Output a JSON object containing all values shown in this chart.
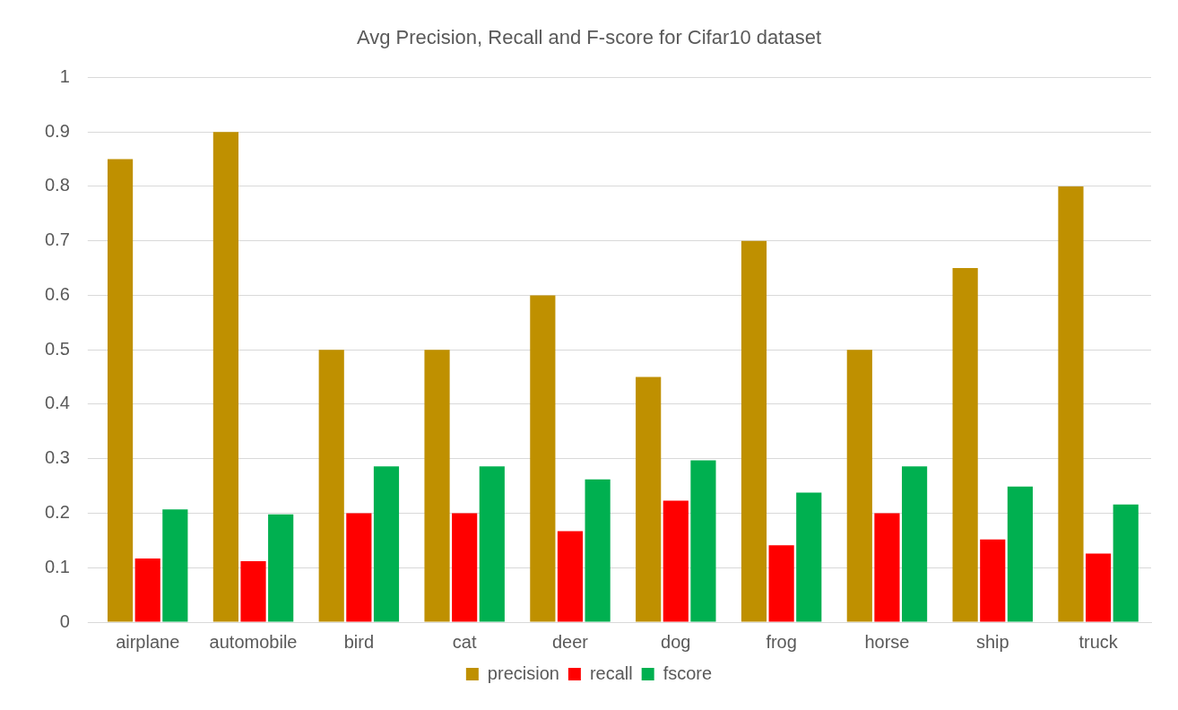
{
  "chart_data": {
    "type": "bar",
    "title": "Avg Precision, Recall and F-score for Cifar10 dataset",
    "categories": [
      "airplane",
      "automobile",
      "bird",
      "cat",
      "deer",
      "dog",
      "frog",
      "horse",
      "ship",
      "truck"
    ],
    "series": [
      {
        "name": "precision",
        "color": "#bf9000",
        "values": [
          0.85,
          0.9,
          0.5,
          0.5,
          0.6,
          0.45,
          0.7,
          0.5,
          0.65,
          0.8
        ]
      },
      {
        "name": "recall",
        "color": "#ff0000",
        "values": [
          0.117,
          0.112,
          0.2,
          0.2,
          0.167,
          0.223,
          0.141,
          0.2,
          0.152,
          0.126
        ]
      },
      {
        "name": "fscore",
        "color": "#00b050",
        "values": [
          0.207,
          0.198,
          0.286,
          0.286,
          0.262,
          0.297,
          0.238,
          0.286,
          0.249,
          0.216
        ]
      }
    ],
    "ylim": [
      0,
      1
    ],
    "yticks": [
      0,
      0.1,
      0.2,
      0.3,
      0.4,
      0.5,
      0.6,
      0.7,
      0.8,
      0.9,
      1
    ],
    "grid": "y",
    "legend": "bottom"
  }
}
